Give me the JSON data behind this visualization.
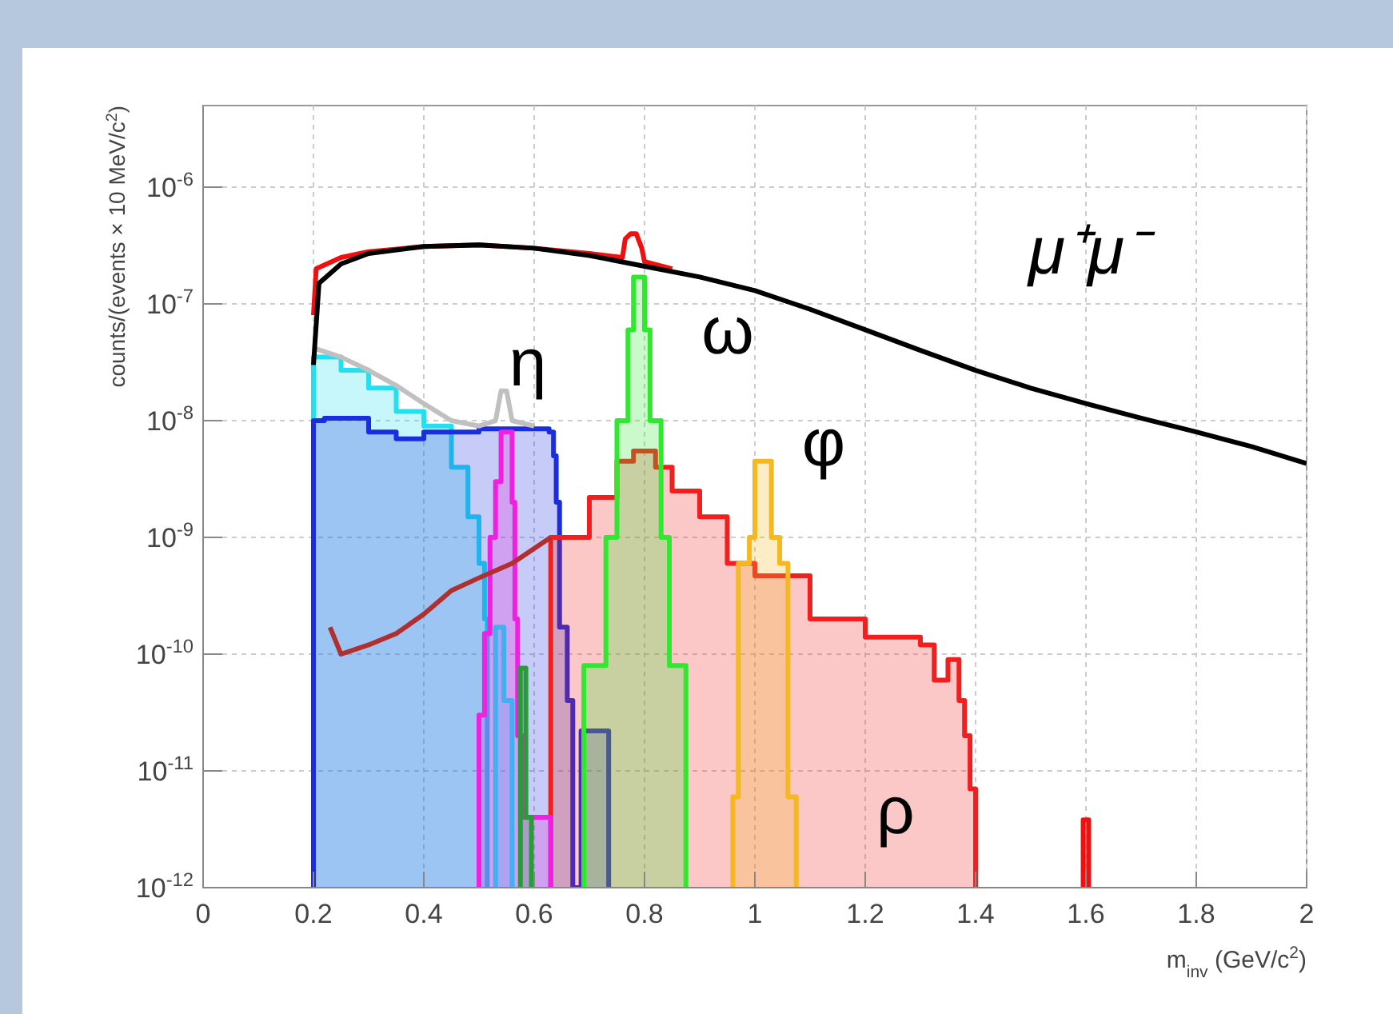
{
  "chart_data": {
    "type": "line",
    "xlabel": "m$_{inv}$ (GeV/c$^{2}$)",
    "ylabel": "counts/(events × 10 MeV/c$^{2}$)",
    "log": "y",
    "grid": true,
    "xlim": [
      0,
      2
    ],
    "ylim": [
      1e-12,
      5e-06
    ],
    "xticks": [
      0,
      0.2,
      0.4,
      0.6,
      0.8,
      1,
      1.2,
      1.4,
      1.6,
      1.8,
      2
    ],
    "yticks": [
      {
        "value": 1e-12,
        "label": "10$^{-12}$"
      },
      {
        "value": 1e-11,
        "label": "10$^{-11}$"
      },
      {
        "value": 1e-10,
        "label": "10$^{-10}$"
      },
      {
        "value": 1e-09,
        "label": "10$^{-9}$"
      },
      {
        "value": 1e-08,
        "label": "10$^{-8}$"
      },
      {
        "value": 1e-07,
        "label": "10$^{-7}$"
      },
      {
        "value": 1e-06,
        "label": "10$^{-6}$"
      }
    ],
    "series": [
      {
        "type": "area",
        "color": "#22e0f0",
        "x": [
          0.2,
          0.25,
          0.3,
          0.35,
          0.4,
          0.45,
          0.48,
          0.5,
          0.51,
          0.515
        ],
        "values": [
          3.5e-08,
          2.7e-08,
          1.9e-08,
          1.2e-08,
          9e-09,
          4e-09,
          1.5e-09,
          6e-10,
          2e-10,
          1e-12
        ]
      },
      {
        "type": "area",
        "color": "#1a2ee0",
        "x": [
          0.2,
          0.22,
          0.3,
          0.35,
          0.4,
          0.5,
          0.6,
          0.627,
          0.635,
          0.64,
          0.646,
          0.66,
          0.67,
          0.685,
          0.735
        ],
        "values": [
          1e-08,
          1.05e-08,
          8e-09,
          7e-09,
          8e-09,
          8.5e-09,
          8.5e-09,
          8e-09,
          5e-09,
          2e-09,
          1.7e-10,
          4e-11,
          1e-12,
          2.2e-11,
          1e-12
        ]
      },
      {
        "type": "area",
        "color": "#f02020",
        "x": [
          0.63,
          0.65,
          0.7,
          0.75,
          0.78,
          0.82,
          0.85,
          0.9,
          0.95,
          1,
          1.1,
          1.2,
          1.3,
          1.325,
          1.35,
          1.37,
          1.38,
          1.39,
          1.4
        ],
        "values": [
          1e-09,
          1e-09,
          2.2e-09,
          4.5e-09,
          5.5e-09,
          4e-09,
          2.5e-09,
          1.5e-09,
          6e-10,
          4.7e-10,
          2e-10,
          1.4e-10,
          1.2e-10,
          6e-11,
          9e-11,
          4e-11,
          2e-11,
          7e-12,
          1e-12
        ]
      },
      {
        "type": "area",
        "color": "#30e830",
        "x": [
          0.69,
          0.73,
          0.75,
          0.77,
          0.78,
          0.79,
          0.8,
          0.81,
          0.83,
          0.845,
          0.875
        ],
        "values": [
          8e-11,
          1e-09,
          1e-08,
          6e-08,
          1.7e-07,
          1.7e-07,
          6e-08,
          1e-08,
          1e-09,
          8e-11,
          1e-12
        ]
      },
      {
        "type": "area",
        "color": "#f5b820",
        "x": [
          0.96,
          0.97,
          0.99,
          1,
          1.02,
          1.03,
          1.045,
          1.06,
          1.075
        ],
        "values": [
          6e-12,
          6e-10,
          1e-09,
          4.5e-09,
          4.5e-09,
          1e-09,
          6e-10,
          6e-12,
          1e-12
        ]
      },
      {
        "type": "area",
        "color": "#f020e0",
        "x": [
          0.5,
          0.51,
          0.52,
          0.53,
          0.54,
          0.55,
          0.56,
          0.565,
          0.57,
          0.58,
          0.63
        ],
        "values": [
          3e-11,
          1.5e-10,
          1e-09,
          3e-09,
          8e-09,
          8e-09,
          2e-09,
          2e-10,
          2e-11,
          4e-12,
          1e-12
        ]
      },
      {
        "type": "area",
        "color": "#40b0f0",
        "x": [
          0.53,
          0.545,
          0.56
        ],
        "values": [
          1.7e-10,
          4e-11,
          1e-12
        ]
      },
      {
        "type": "area",
        "color": "#2a9a3a",
        "x": [
          0.575,
          0.585,
          0.595
        ],
        "values": [
          7.6e-11,
          4e-12,
          1e-12
        ]
      },
      {
        "type": "area",
        "color": "#f01010",
        "x": [
          1.595,
          1.605
        ],
        "values": [
          3.8e-12,
          1e-12
        ]
      },
      {
        "color": "#b03030",
        "x": [
          0.23,
          0.25,
          0.3,
          0.35,
          0.4,
          0.45,
          0.5,
          0.56,
          0.63
        ],
        "values": [
          1.7e-10,
          1e-10,
          1.2e-10,
          1.5e-10,
          2.2e-10,
          3.5e-10,
          4.5e-10,
          6e-10,
          1e-09
        ]
      },
      {
        "color": "#c0c0c0",
        "x": [
          0.2,
          0.25,
          0.3,
          0.35,
          0.4,
          0.45,
          0.5,
          0.53,
          0.54,
          0.55,
          0.56,
          0.6
        ],
        "values": [
          4.2e-08,
          3.5e-08,
          2.7e-08,
          2e-08,
          1.4e-08,
          1e-08,
          9e-09,
          1e-08,
          1.8e-08,
          1.8e-08,
          1e-08,
          9e-09
        ]
      },
      {
        "color": "#f01010",
        "x": [
          0.2,
          0.205,
          0.25,
          0.3,
          0.4,
          0.5,
          0.6,
          0.7,
          0.76,
          0.765,
          0.775,
          0.785,
          0.795,
          0.8,
          0.85
        ],
        "values": [
          8e-08,
          2e-07,
          2.5e-07,
          2.8e-07,
          3.1e-07,
          3.2e-07,
          3e-07,
          2.7e-07,
          2.5e-07,
          3.6e-07,
          4e-07,
          4e-07,
          3e-07,
          2.3e-07,
          2e-07
        ]
      },
      {
        "color": "#000000",
        "x": [
          0.2,
          0.2,
          0.21,
          0.25,
          0.3,
          0.4,
          0.5,
          0.6,
          0.7,
          0.8,
          0.9,
          1,
          1.1,
          1.2,
          1.3,
          1.4,
          1.5,
          1.6,
          1.7,
          1.8,
          1.9,
          2
        ],
        "values": [
          3e-08,
          3e-08,
          1.5e-07,
          2.2e-07,
          2.7e-07,
          3.1e-07,
          3.2e-07,
          3e-07,
          2.6e-07,
          2.1e-07,
          1.7e-07,
          1.3e-07,
          9e-08,
          6e-08,
          4e-08,
          2.7e-08,
          1.9e-08,
          1.4e-08,
          1.05e-08,
          8e-09,
          6e-09,
          4.3e-09
        ]
      }
    ],
    "annotations": [
      "η",
      "ω",
      "φ",
      "ρ",
      "μ⁺μ⁻"
    ]
  }
}
